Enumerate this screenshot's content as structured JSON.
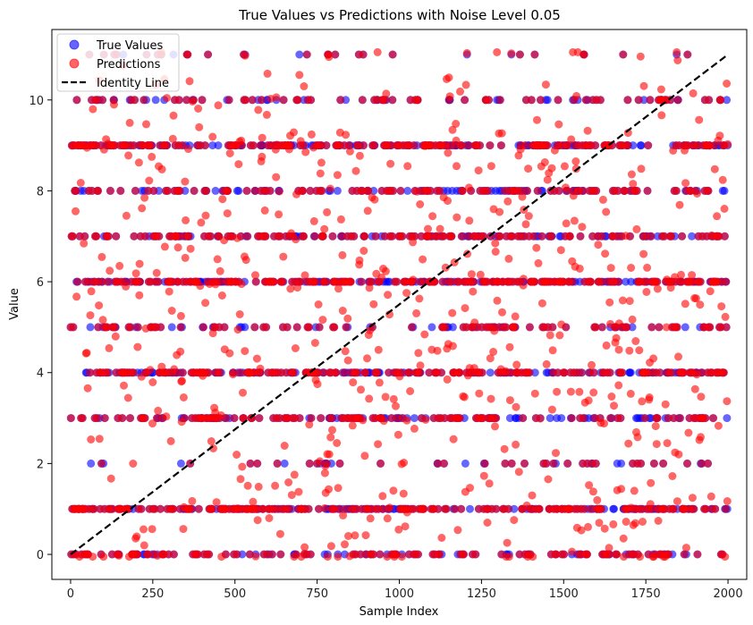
{
  "chart_data": {
    "type": "scatter",
    "title": "True Values vs Predictions with Noise Level 0.05",
    "xlabel": "Sample Index",
    "ylabel": "Value",
    "xlim": [
      -57,
      2057
    ],
    "ylim": [
      -0.55,
      11.55
    ],
    "xticks": [
      0,
      250,
      500,
      750,
      1000,
      1250,
      1500,
      1750,
      2000
    ],
    "yticks": [
      0,
      2,
      4,
      6,
      8,
      10
    ],
    "grid": false,
    "legend_position": "top-left",
    "legend": [
      {
        "key": "true",
        "label": "True Values",
        "marker": "circle",
        "color": "#0000ff"
      },
      {
        "key": "pred",
        "label": "Predictions",
        "marker": "circle",
        "color": "#ff0000"
      },
      {
        "key": "identity",
        "label": "Identity Line",
        "marker": "dashed-line",
        "color": "#000000"
      }
    ],
    "marker_alpha": 0.6,
    "n_samples": 2000,
    "value_levels": [
      0,
      1,
      2,
      3,
      4,
      5,
      6,
      7,
      8,
      9,
      10,
      11
    ],
    "prediction_noise_level": 0.05,
    "series": [
      {
        "name": "True Values",
        "key": "true",
        "color": "#0000ff",
        "description": "integer target values for sample index 0..1999"
      },
      {
        "name": "Predictions",
        "key": "pred",
        "color": "#ff0000",
        "description": "predicted values, mostly on integer levels with noise"
      },
      {
        "name": "Identity Line",
        "key": "identity",
        "color": "#000000",
        "x": [
          0,
          2000
        ],
        "y": [
          0,
          11
        ]
      }
    ]
  }
}
